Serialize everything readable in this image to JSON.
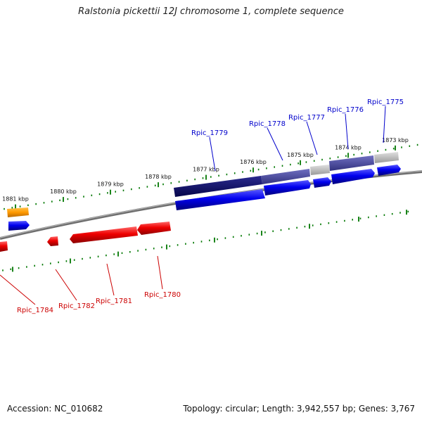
{
  "title": "Ralstonia pickettii 12J chromosome 1, complete sequence",
  "footer": {
    "accession": "Accession: NC_010682",
    "summary": "Topology: circular; Length: 3,942,557 bp; Genes: 3,767"
  },
  "colors": {
    "forward_gene": "#0000ee",
    "reverse_gene": "#ee0000",
    "other_gene": "#ff9900",
    "forward_label": "#0000cc",
    "reverse_label": "#cc0000",
    "backbone": "#808080",
    "tick": "#007700",
    "feature_dark": "#0a0a6e",
    "feature_mid": "#4a4aa6",
    "feature_grey": "#bdbdbd"
  },
  "ticks_outer": [
    "1881 kbp",
    "1880 kbp",
    "1879 kbp",
    "1878 kbp",
    "1877 kbp",
    "1876 kbp",
    "1875 kbp",
    "1874 kbp",
    "1873 kbp"
  ],
  "genes_forward": [
    "Rpic_1779",
    "Rpic_1778",
    "Rpic_1777",
    "Rpic_1776",
    "Rpic_1775"
  ],
  "genes_reverse": [
    "Rpic_1784",
    "Rpic_1782",
    "Rpic_1781",
    "Rpic_1780"
  ]
}
